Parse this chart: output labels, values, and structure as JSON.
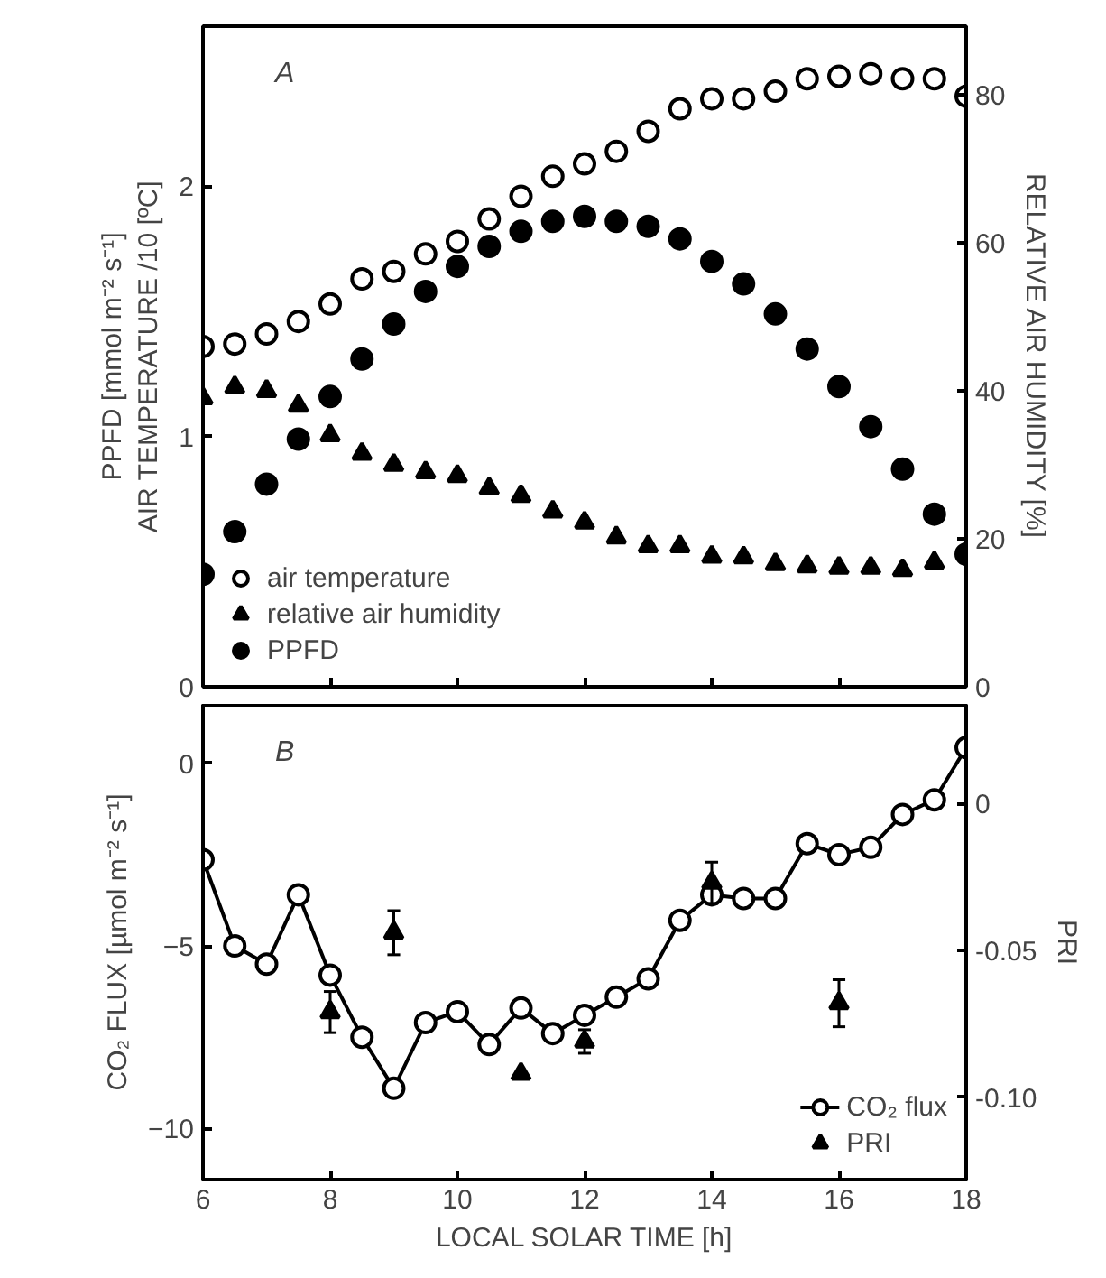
{
  "chart_data": [
    {
      "type": "scatter",
      "annotations": [
        "A"
      ],
      "ylabel": "PPFD [mmol m⁻² s⁻¹]\nAIR TEMPERATURE /10 [ºC]",
      "y2label": "RELATIVE AIR HUMIDITY [%]",
      "x": [
        6,
        6.5,
        7,
        7.5,
        8,
        8.5,
        9,
        9.5,
        10,
        10.5,
        11,
        11.5,
        12,
        12.5,
        13,
        13.5,
        14,
        14.5,
        15,
        15.5,
        16,
        16.5,
        17,
        17.5,
        18
      ],
      "xlim": [
        6,
        18
      ],
      "xticks": [
        6,
        8,
        10,
        12,
        14,
        16,
        18
      ],
      "ylim": [
        0,
        2.64
      ],
      "yticks": [
        0,
        1,
        2
      ],
      "y2lim": [
        0,
        89.3
      ],
      "y2ticks": [
        0,
        20,
        40,
        60,
        80
      ],
      "tick_labels": "y",
      "grid": false,
      "legend": "bottom left",
      "series": [
        {
          "name": "air temperature",
          "color": "#ffffff",
          "marker": "circle",
          "values": [
            1.36,
            1.37,
            1.41,
            1.46,
            1.53,
            1.63,
            1.66,
            1.73,
            1.78,
            1.87,
            1.96,
            2.04,
            2.09,
            2.14,
            2.22,
            2.31,
            2.35,
            2.35,
            2.38,
            2.43,
            2.44,
            2.45,
            2.43,
            2.43,
            2.36
          ]
        },
        {
          "name": "relative air humidity",
          "color": "#000000",
          "marker": "triangle",
          "axis": "y2",
          "values": [
            39,
            40.5,
            40,
            38,
            34,
            31.5,
            30,
            29,
            28.5,
            26.8,
            25.8,
            23.7,
            22.2,
            20.2,
            19,
            19,
            17.6,
            17.5,
            16.6,
            16.3,
            16.1,
            16.1,
            15.8,
            16.8,
            null
          ]
        },
        {
          "name": "PPFD",
          "color": "#000000",
          "marker": "circle",
          "values": [
            0.45,
            0.62,
            0.81,
            0.99,
            1.16,
            1.31,
            1.45,
            1.58,
            1.68,
            1.76,
            1.82,
            1.86,
            1.88,
            1.86,
            1.84,
            1.79,
            1.7,
            1.61,
            1.49,
            1.35,
            1.2,
            1.04,
            0.87,
            0.69,
            0.53
          ]
        }
      ]
    },
    {
      "type": "line",
      "annotations": [
        "B"
      ],
      "xlabel": "LOCAL SOLAR TIME [h]",
      "ylabel": "CO₂ FLUX [µmol m⁻² s⁻¹]",
      "y2label": "PRI",
      "x": [
        6,
        6.5,
        7,
        7.5,
        8,
        8.5,
        9,
        9.5,
        10,
        10.5,
        11,
        11.5,
        12,
        12.5,
        13,
        13.5,
        14,
        14.5,
        15,
        15.5,
        16,
        16.5,
        17,
        17.5,
        18
      ],
      "xlim": [
        6,
        18
      ],
      "xticks": [
        6,
        8,
        10,
        12,
        14,
        16,
        18
      ],
      "ylim": [
        -11.4,
        1.6
      ],
      "yticks": [
        -10,
        -5,
        0
      ],
      "y2lim": [
        -0.128,
        0.0335
      ],
      "y2ticks": [
        {
          "value": -0.1,
          "label": "-0.10"
        },
        {
          "value": -0.05,
          "label": "-0.05"
        },
        0
      ],
      "grid": false,
      "legend": "bottom right",
      "series": [
        {
          "name": "CO₂ flux",
          "type": "line",
          "color": "#000000",
          "marker": "circle",
          "values": [
            -2.64,
            -5.0,
            -5.5,
            -3.6,
            -5.8,
            -7.5,
            -8.9,
            -7.1,
            -6.8,
            -7.7,
            -6.7,
            -7.4,
            -6.9,
            -6.4,
            -5.9,
            -4.3,
            -3.6,
            -3.7,
            -3.7,
            -2.2,
            -2.5,
            -2.3,
            -1.4,
            -1.0,
            0.43
          ]
        },
        {
          "name": "PRI",
          "type": "scatter",
          "color": "#000000",
          "marker": "triangle",
          "axis": "y2",
          "x": [
            8,
            9,
            11,
            12,
            14,
            16
          ],
          "values": [
            -0.071,
            -0.044,
            -0.092,
            -0.081,
            -0.027,
            -0.068
          ],
          "errors": [
            0.007,
            0.0075,
            null,
            0.004,
            0.007,
            0.008
          ]
        }
      ]
    }
  ]
}
